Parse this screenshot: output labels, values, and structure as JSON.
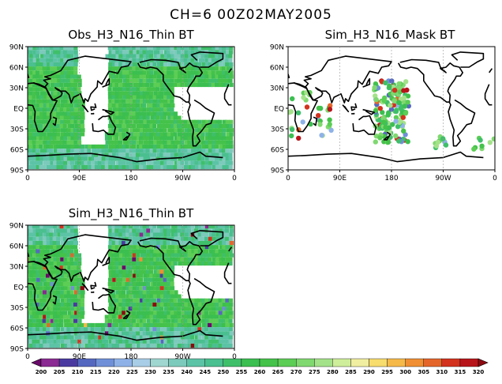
{
  "figure": {
    "main_title": "CH=6    00Z02MAY2005",
    "panels": [
      {
        "title": "Obs_H3_N16_Thin BT",
        "field": "obs_thin"
      },
      {
        "title": "Sim_H3_N16_Mask BT",
        "field": "sim_mask"
      },
      {
        "title": "Sim_H3_N16_Thin BT",
        "field": "sim_thin"
      }
    ],
    "lat_labels": [
      "90N",
      "60N",
      "30N",
      "EQ",
      "30S",
      "60S",
      "90S"
    ],
    "lon_labels": [
      "0",
      "90E",
      "180",
      "90W",
      "0"
    ],
    "colorbar": {
      "labels": [
        "200",
        "205",
        "210",
        "215",
        "220",
        "225",
        "230",
        "235",
        "240",
        "245",
        "250",
        "255",
        "260",
        "265",
        "270",
        "275",
        "280",
        "285",
        "290",
        "295",
        "300",
        "305",
        "310",
        "315",
        "320"
      ],
      "colors": [
        "#6a0a6a",
        "#8a2a92",
        "#4a3aa0",
        "#5568c0",
        "#6f8fd8",
        "#8eb2e8",
        "#a8cde6",
        "#9fd6d0",
        "#7ccabb",
        "#5cc3a6",
        "#4abf8f",
        "#3fbf6a",
        "#3bbf50",
        "#44c24a",
        "#5ccd55",
        "#80d870",
        "#a4e28a",
        "#cfee9b",
        "#f0eea0",
        "#f7dc6e",
        "#f5b94a",
        "#ef8e33",
        "#e4652a",
        "#d2321e",
        "#b7141a",
        "#8c0a10"
      ]
    }
  }
}
